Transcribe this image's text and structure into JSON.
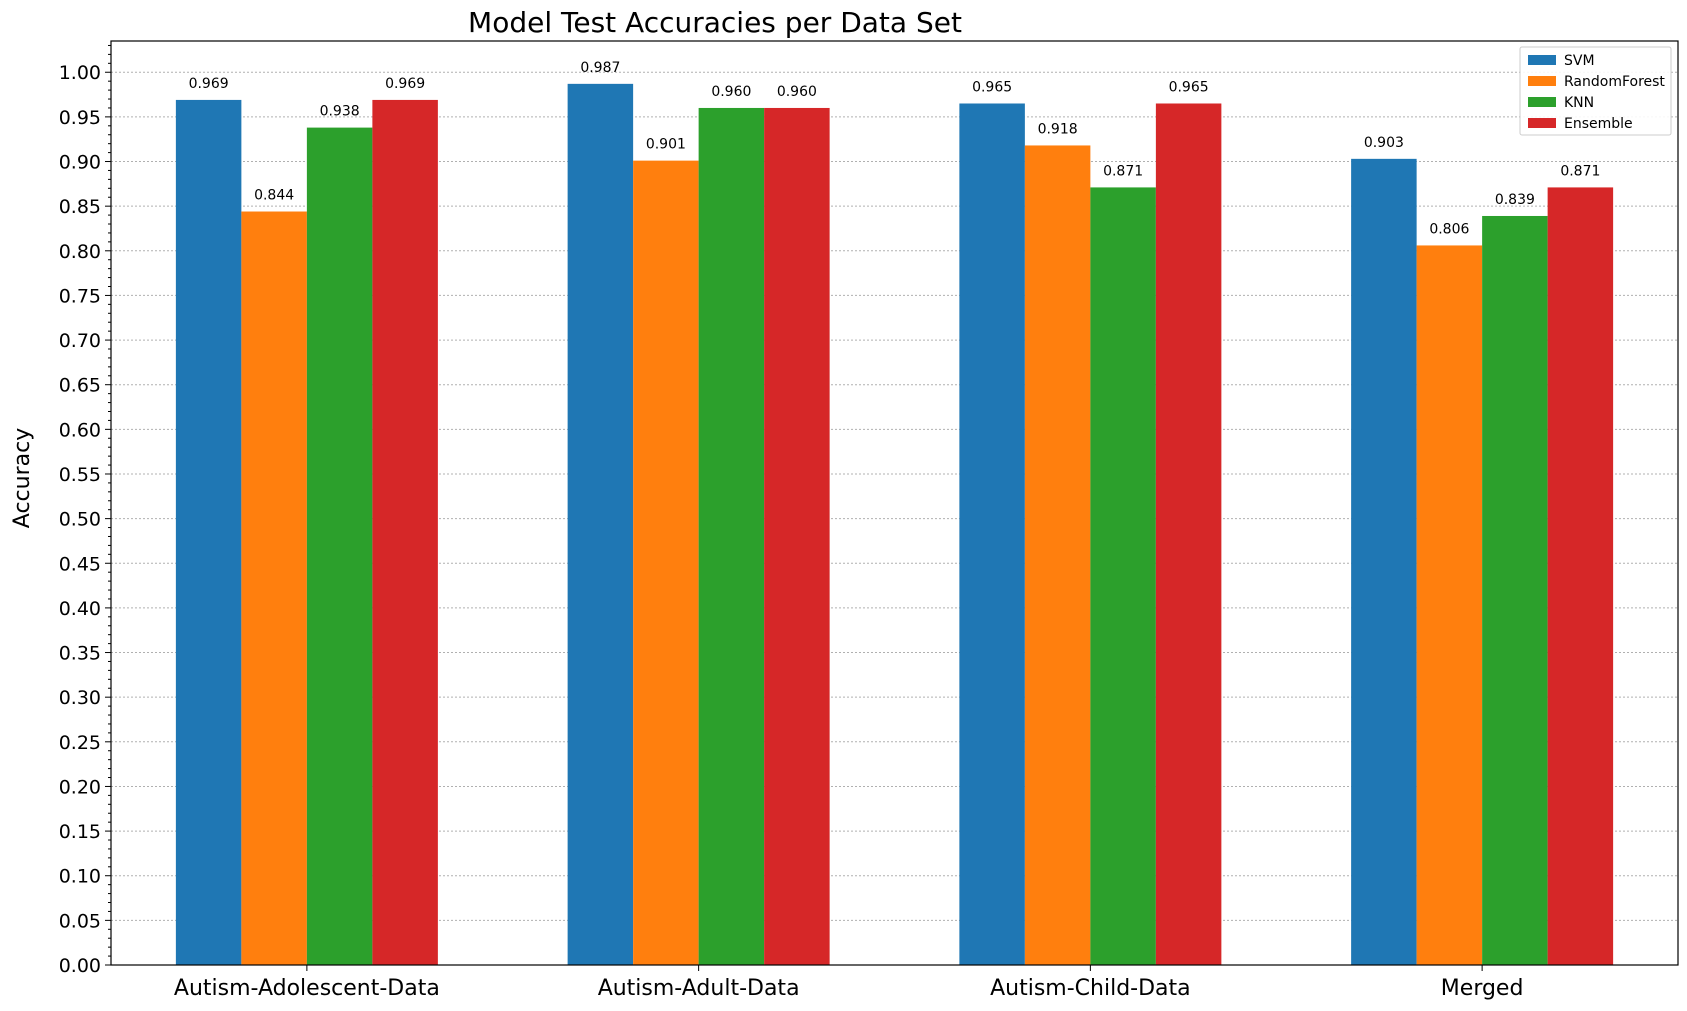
{
  "chart_data": {
    "type": "bar",
    "title": "Model Test Accuracies per Data Set",
    "xlabel": "",
    "ylabel": "Accuracy",
    "ylim": [
      0,
      1.035
    ],
    "yticks": [
      "0.00",
      "0.05",
      "0.10",
      "0.15",
      "0.20",
      "0.25",
      "0.30",
      "0.35",
      "0.40",
      "0.45",
      "0.50",
      "0.55",
      "0.60",
      "0.65",
      "0.70",
      "0.75",
      "0.80",
      "0.85",
      "0.90",
      "0.95",
      "1.00"
    ],
    "grid": true,
    "legend_position": "top-right",
    "categories": [
      "Autism-Adolescent-Data",
      "Autism-Adult-Data",
      "Autism-Child-Data",
      "Merged"
    ],
    "series": [
      {
        "name": "SVM",
        "color": "#1f77b4",
        "values": [
          0.969,
          0.987,
          0.965,
          0.903
        ],
        "labels": [
          "0.969",
          "0.987",
          "0.965",
          "0.903"
        ]
      },
      {
        "name": "RandomForest",
        "color": "#ff7f0e",
        "values": [
          0.844,
          0.901,
          0.918,
          0.806
        ],
        "labels": [
          "0.844",
          "0.901",
          "0.918",
          "0.806"
        ]
      },
      {
        "name": "KNN",
        "color": "#2ca02c",
        "values": [
          0.938,
          0.96,
          0.871,
          0.839
        ],
        "labels": [
          "0.938",
          "0.960",
          "0.871",
          "0.839"
        ]
      },
      {
        "name": "Ensemble",
        "color": "#d62728",
        "values": [
          0.969,
          0.96,
          0.965,
          0.871
        ],
        "labels": [
          "0.969",
          "0.960",
          "0.965",
          "0.871"
        ]
      }
    ]
  }
}
